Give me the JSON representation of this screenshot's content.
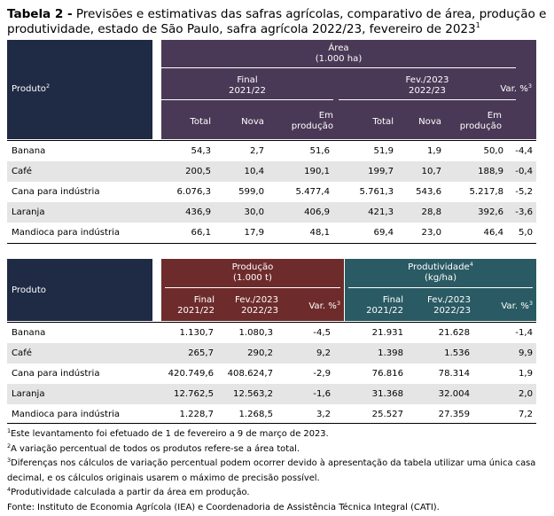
{
  "title": {
    "label": "Tabela 2 -",
    "text": "Previsões e estimativas das safras agrícolas, comparativo de área, produção e produtividade, estado de São Paulo, safra agrícola 2022/23, fevereiro de 2023",
    "footnote_mark": "1"
  },
  "table1": {
    "col_produto": "Produto",
    "col_produto_mark": "2",
    "group_title": "Área",
    "group_unit": "(1.000 ha)",
    "final_l1": "Final",
    "final_l2": "2021/22",
    "fev_l1": "Fev./2023",
    "fev_l2": "2022/23",
    "var_label": "Var. %",
    "var_mark": "3",
    "sub_total": "Total",
    "sub_nova": "Nova",
    "sub_em_l1": "Em",
    "sub_em_l2": "produção",
    "rows": [
      {
        "produto": "Banana",
        "v": [
          "54,3",
          "2,7",
          "51,6",
          "51,9",
          "1,9",
          "50,0",
          "-4,4"
        ]
      },
      {
        "produto": "Café",
        "v": [
          "200,5",
          "10,4",
          "190,1",
          "199,7",
          "10,7",
          "188,9",
          "-0,4"
        ]
      },
      {
        "produto": "Cana para indústria",
        "v": [
          "6.076,3",
          "599,0",
          "5.477,4",
          "5.761,3",
          "543,6",
          "5.217,8",
          "-5,2"
        ]
      },
      {
        "produto": "Laranja",
        "v": [
          "436,9",
          "30,0",
          "406,9",
          "421,3",
          "28,8",
          "392,6",
          "-3,6"
        ]
      },
      {
        "produto": "Mandioca para indústria",
        "v": [
          "66,1",
          "17,9",
          "48,1",
          "69,4",
          "23,0",
          "46,4",
          "5,0"
        ]
      }
    ]
  },
  "table2": {
    "col_produto": "Produto",
    "prod_title": "Produção",
    "prod_unit": "(1.000 t)",
    "prdv_title": "Produtividade",
    "prdv_mark": "4",
    "prdv_unit": "(kg/ha)",
    "final_l1": "Final",
    "final_l2": "2021/22",
    "fev_l1": "Fev./2023",
    "fev_l2": "2022/23",
    "var_label": "Var. %",
    "var_mark": "3",
    "rows": [
      {
        "produto": "Banana",
        "v": [
          "1.130,7",
          "1.080,3",
          "-4,5",
          "21.931",
          "21.628",
          "-1,4"
        ]
      },
      {
        "produto": "Café",
        "v": [
          "265,7",
          "290,2",
          "9,2",
          "1.398",
          "1.536",
          "9,9"
        ]
      },
      {
        "produto": "Cana para indústria",
        "v": [
          "420.749,6",
          "408.624,7",
          "-2,9",
          "76.816",
          "78.314",
          "1,9"
        ]
      },
      {
        "produto": "Laranja",
        "v": [
          "12.762,5",
          "12.563,2",
          "-1,6",
          "31.368",
          "32.004",
          "2,0"
        ]
      },
      {
        "produto": "Mandioca para indústria",
        "v": [
          "1.228,7",
          "1.268,5",
          "3,2",
          "25.527",
          "27.359",
          "7,2"
        ]
      }
    ]
  },
  "notes": [
    {
      "mark": "1",
      "text": "Este levantamento foi efetuado de 1 de fevereiro a 9 de março de 2023."
    },
    {
      "mark": "2",
      "text": "A variação percentual de todos os produtos refere-se a área total."
    },
    {
      "mark": "3",
      "text": "Diferenças nos cálculos de variação percentual podem ocorrer devido à apresentação da tabela utilizar uma única casa decimal, e os cálculos originais usarem o máximo de precisão possível."
    },
    {
      "mark": "4",
      "text": "Produtividade calculada a partir da área em produção."
    }
  ],
  "source": "Fonte: Instituto de Economia Agrícola (IEA) e Coordenadoria de Assistência Técnica Integral (CATI).",
  "colors": {
    "navy": "#1f2a44",
    "purple": "#4a3956",
    "red": "#6e2b2b",
    "teal": "#2a5a63",
    "row_shade": "#e5e5e5"
  }
}
